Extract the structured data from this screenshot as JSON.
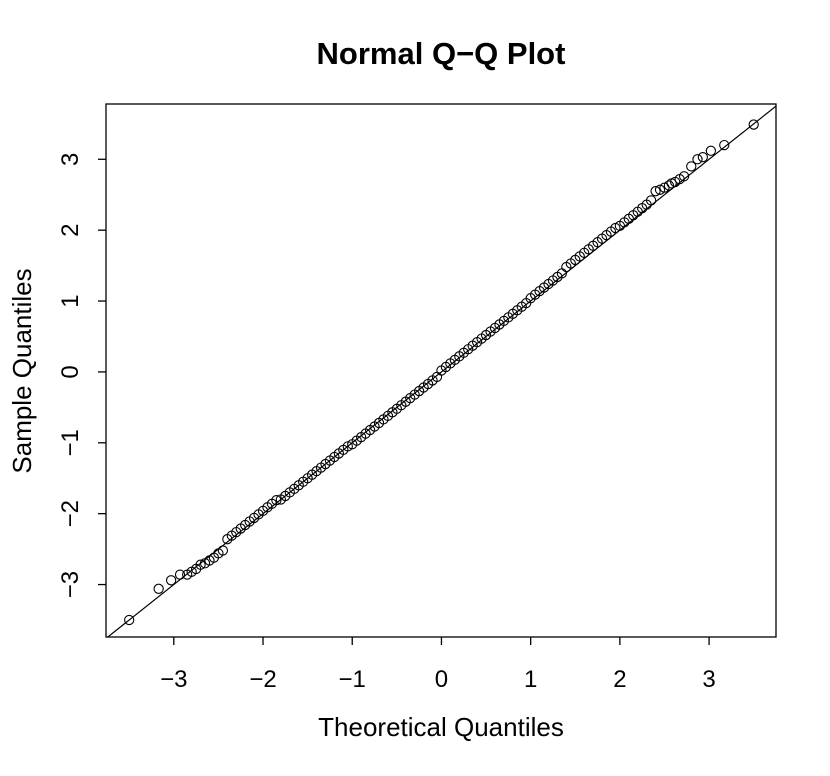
{
  "chart_data": {
    "type": "scatter",
    "title": "Normal Q−Q Plot",
    "x_label": "Theoretical Quantiles",
    "y_label": "Sample Quantiles",
    "xlim": [
      -3.76,
      3.75
    ],
    "ylim": [
      -3.74,
      3.78
    ],
    "xticks": [
      {
        "value": -3,
        "label": "−3"
      },
      {
        "value": -2,
        "label": "−2"
      },
      {
        "value": -1,
        "label": "−1"
      },
      0,
      1,
      2,
      3
    ],
    "yticks": [
      {
        "value": -3,
        "label": "−3"
      },
      {
        "value": -2,
        "label": "−2"
      },
      {
        "value": -1,
        "label": "−1"
      },
      0,
      1,
      2,
      3
    ],
    "color": "#000000",
    "reference_line": {
      "slope": 1.0,
      "intercept": 0.0
    },
    "x": [
      -3.5,
      -3.17,
      -3.03,
      -2.93,
      -2.85,
      -2.8,
      -2.75,
      -2.7,
      -2.65,
      -2.6,
      -2.55,
      -2.5,
      -2.45,
      -2.4,
      -2.35,
      -2.3,
      -2.25,
      -2.2,
      -2.15,
      -2.1,
      -2.05,
      -2,
      -1.95,
      -1.9,
      -1.85,
      -1.8,
      -1.75,
      -1.7,
      -1.65,
      -1.6,
      -1.55,
      -1.5,
      -1.45,
      -1.4,
      -1.35,
      -1.3,
      -1.25,
      -1.2,
      -1.15,
      -1.1,
      -1.05,
      -1,
      -0.95,
      -0.9,
      -0.85,
      -0.8,
      -0.75,
      -0.7,
      -0.65,
      -0.6,
      -0.55,
      -0.5,
      -0.45,
      -0.4,
      -0.35,
      -0.3,
      -0.25,
      -0.2,
      -0.15,
      -0.1,
      -0.05,
      0,
      0.05,
      0.1,
      0.15,
      0.2,
      0.25,
      0.3,
      0.35,
      0.4,
      0.45,
      0.5,
      0.55,
      0.6,
      0.65,
      0.7,
      0.75,
      0.8,
      0.85,
      0.9,
      0.95,
      1,
      1.05,
      1.1,
      1.15,
      1.2,
      1.25,
      1.3,
      1.35,
      1.4,
      1.45,
      1.5,
      1.55,
      1.6,
      1.65,
      1.7,
      1.75,
      1.8,
      1.85,
      1.9,
      1.95,
      2,
      2.05,
      2.1,
      2.15,
      2.2,
      2.25,
      2.3,
      2.35,
      2.4,
      2.45,
      2.5,
      2.55,
      2.58,
      2.62,
      2.67,
      2.72,
      2.8,
      2.87,
      2.93,
      3.02,
      3.17,
      3.5
    ],
    "y": [
      -3.5,
      -3.06,
      -2.94,
      -2.86,
      -2.86,
      -2.82,
      -2.78,
      -2.72,
      -2.7,
      -2.66,
      -2.62,
      -2.56,
      -2.52,
      -2.36,
      -2.31,
      -2.26,
      -2.21,
      -2.16,
      -2.11,
      -2.06,
      -2.01,
      -1.96,
      -1.91,
      -1.86,
      -1.81,
      -1.8,
      -1.75,
      -1.7,
      -1.65,
      -1.6,
      -1.55,
      -1.5,
      -1.45,
      -1.4,
      -1.35,
      -1.3,
      -1.25,
      -1.2,
      -1.15,
      -1.1,
      -1.05,
      -1.02,
      -0.97,
      -0.92,
      -0.87,
      -0.82,
      -0.77,
      -0.72,
      -0.67,
      -0.62,
      -0.57,
      -0.52,
      -0.47,
      -0.42,
      -0.37,
      -0.32,
      -0.27,
      -0.22,
      -0.17,
      -0.12,
      -0.07,
      0.02,
      0.07,
      0.12,
      0.17,
      0.22,
      0.27,
      0.32,
      0.37,
      0.42,
      0.47,
      0.52,
      0.57,
      0.62,
      0.67,
      0.72,
      0.77,
      0.82,
      0.87,
      0.92,
      0.97,
      1.04,
      1.09,
      1.14,
      1.19,
      1.24,
      1.29,
      1.34,
      1.39,
      1.48,
      1.53,
      1.58,
      1.63,
      1.68,
      1.73,
      1.78,
      1.83,
      1.88,
      1.93,
      1.98,
      2.03,
      2.06,
      2.11,
      2.16,
      2.21,
      2.26,
      2.31,
      2.36,
      2.42,
      2.55,
      2.57,
      2.6,
      2.63,
      2.66,
      2.68,
      2.72,
      2.76,
      2.9,
      3.0,
      3.03,
      3.12,
      3.2,
      3.49
    ]
  }
}
